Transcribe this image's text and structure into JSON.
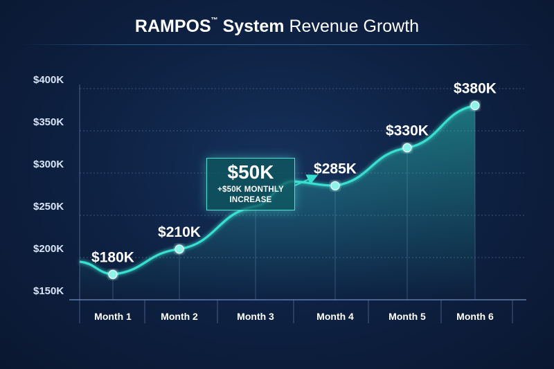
{
  "title": {
    "brand": "RAMPOS",
    "trademark": "™",
    "system": "System",
    "rest": "Revenue Growth"
  },
  "callout": {
    "value": "$50K",
    "caption": "+$50K MONTHLY INCREASE"
  },
  "chart_data": {
    "type": "line",
    "title": "RAMPOS™ System Revenue Growth",
    "xlabel": "",
    "ylabel": "",
    "categories": [
      "Month 1",
      "Month 2",
      "Month 3",
      "Month 4",
      "Month 5",
      "Month 6"
    ],
    "series": [
      {
        "values": [
          180,
          210,
          null,
          285,
          330,
          380
        ],
        "labels": [
          "$180K",
          "$210K",
          "",
          "$285K",
          "$330K",
          "$380K"
        ]
      }
    ],
    "y_ticks": [
      150,
      200,
      250,
      300,
      350,
      400
    ],
    "y_tick_labels": [
      "$150K",
      "$200K",
      "$250K",
      "$300K",
      "$350K",
      "$400K"
    ],
    "ylim": [
      150,
      400
    ],
    "unit": "thousand USD",
    "grid": true,
    "colors": {
      "line": "#39e0cf",
      "point": "#8ff3ea",
      "grid": "#4a6a96",
      "axis_text": "#d8e4f7"
    }
  }
}
